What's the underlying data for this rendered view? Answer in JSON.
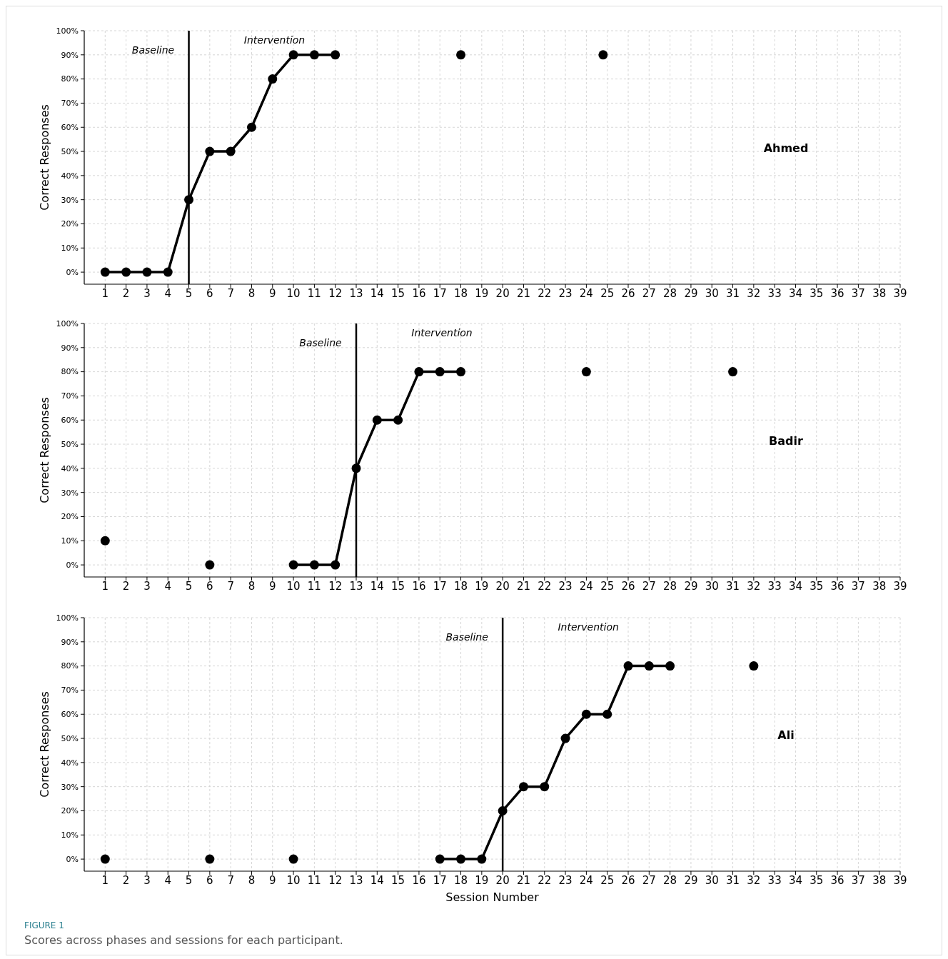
{
  "chart_data": [
    {
      "type": "line",
      "ylabel": "Correct Responses",
      "xlim": [
        0,
        39
      ],
      "ylim": [
        -5,
        100
      ],
      "xticks": [
        1,
        2,
        3,
        4,
        5,
        6,
        7,
        8,
        9,
        10,
        11,
        12,
        13,
        14,
        15,
        16,
        17,
        18,
        19,
        20,
        21,
        22,
        23,
        24,
        25,
        26,
        27,
        28,
        29,
        30,
        31,
        32,
        33,
        34,
        35,
        36,
        37,
        38,
        39
      ],
      "yticks": [
        {
          "value": 0,
          "label": "0%"
        },
        {
          "value": 10,
          "label": "10%"
        },
        {
          "value": 20,
          "label": "20%"
        },
        {
          "value": 30,
          "label": "30%"
        },
        {
          "value": 40,
          "label": "40%"
        },
        {
          "value": 50,
          "label": "50%"
        },
        {
          "value": 60,
          "label": "60%"
        },
        {
          "value": 70,
          "label": "70%"
        },
        {
          "value": 80,
          "label": "80%"
        },
        {
          "value": 90,
          "label": "90%"
        },
        {
          "value": 100,
          "label": "100%"
        }
      ],
      "grid": true,
      "marker": "circle",
      "tick_labels": "xy",
      "series": [
        {
          "type": "line",
          "color": "#000000",
          "x": [
            1,
            2,
            3,
            4,
            5,
            6,
            7,
            8,
            9,
            10,
            11,
            12
          ],
          "values": [
            0,
            0,
            0,
            0,
            30,
            50,
            50,
            60,
            80,
            90,
            90,
            90
          ]
        },
        {
          "type": "scatter",
          "color": "#000000",
          "x": [
            18,
            24.8
          ],
          "values": [
            90,
            90
          ]
        }
      ],
      "ref_lines": [
        {
          "axis": "x",
          "value": 5,
          "color": "#000000"
        }
      ],
      "annotations": [
        "Baseline",
        "Intervention",
        "Ahmed"
      ]
    },
    {
      "type": "line",
      "ylabel": "Correct Responses",
      "xlim": [
        0,
        39
      ],
      "ylim": [
        -5,
        100
      ],
      "xticks": [
        1,
        2,
        3,
        4,
        5,
        6,
        7,
        8,
        9,
        10,
        11,
        12,
        13,
        14,
        15,
        16,
        17,
        18,
        19,
        20,
        21,
        22,
        23,
        24,
        25,
        26,
        27,
        28,
        29,
        30,
        31,
        32,
        33,
        34,
        35,
        36,
        37,
        38,
        39
      ],
      "yticks": [
        {
          "value": 0,
          "label": "0%"
        },
        {
          "value": 10,
          "label": "10%"
        },
        {
          "value": 20,
          "label": "20%"
        },
        {
          "value": 30,
          "label": "30%"
        },
        {
          "value": 40,
          "label": "40%"
        },
        {
          "value": 50,
          "label": "50%"
        },
        {
          "value": 60,
          "label": "60%"
        },
        {
          "value": 70,
          "label": "70%"
        },
        {
          "value": 80,
          "label": "80%"
        },
        {
          "value": 90,
          "label": "90%"
        },
        {
          "value": 100,
          "label": "100%"
        }
      ],
      "grid": true,
      "marker": "circle",
      "series": [
        {
          "type": "line",
          "color": "#000000",
          "x": [
            10,
            11,
            12,
            13,
            14,
            15,
            16,
            17,
            18
          ],
          "values": [
            0,
            0,
            0,
            40,
            60,
            60,
            80,
            80,
            80
          ]
        },
        {
          "type": "scatter",
          "color": "#000000",
          "x": [
            1,
            6,
            24,
            31
          ],
          "values": [
            10,
            0,
            80,
            80
          ]
        }
      ],
      "ref_lines": [
        {
          "axis": "x",
          "value": 13,
          "color": "#000000"
        }
      ],
      "annotations": [
        "Baseline",
        "Intervention",
        "Badir"
      ]
    },
    {
      "type": "line",
      "ylabel": "Correct Responses",
      "xlabel": "Session Number",
      "xlim": [
        0,
        39
      ],
      "ylim": [
        -5,
        100
      ],
      "xticks": [
        1,
        2,
        3,
        4,
        5,
        6,
        7,
        8,
        9,
        10,
        11,
        12,
        13,
        14,
        15,
        16,
        17,
        18,
        19,
        20,
        21,
        22,
        23,
        24,
        25,
        26,
        27,
        28,
        29,
        30,
        31,
        32,
        33,
        34,
        35,
        36,
        37,
        38,
        39
      ],
      "yticks": [
        {
          "value": 0,
          "label": "0%"
        },
        {
          "value": 10,
          "label": "10%"
        },
        {
          "value": 20,
          "label": "20%"
        },
        {
          "value": 30,
          "label": "30%"
        },
        {
          "value": 40,
          "label": "40%"
        },
        {
          "value": 50,
          "label": "50%"
        },
        {
          "value": 60,
          "label": "60%"
        },
        {
          "value": 70,
          "label": "70%"
        },
        {
          "value": 80,
          "label": "80%"
        },
        {
          "value": 90,
          "label": "90%"
        },
        {
          "value": 100,
          "label": "100%"
        }
      ],
      "grid": true,
      "marker": "circle",
      "series": [
        {
          "type": "line",
          "color": "#000000",
          "x": [
            17,
            18,
            19,
            20,
            21,
            22,
            23,
            24,
            25,
            26,
            27,
            28
          ],
          "values": [
            0,
            0,
            0,
            20,
            30,
            30,
            50,
            60,
            60,
            80,
            80,
            80
          ]
        },
        {
          "type": "scatter",
          "color": "#000000",
          "x": [
            1,
            6,
            10,
            32
          ],
          "values": [
            0,
            0,
            0,
            80
          ]
        }
      ],
      "ref_lines": [
        {
          "axis": "x",
          "value": 20,
          "color": "#000000"
        }
      ],
      "annotations": [
        "Baseline",
        "Intervention",
        "Ali",
        "FIGURE 1",
        "Scores across phases and sessions for each participant."
      ]
    }
  ]
}
